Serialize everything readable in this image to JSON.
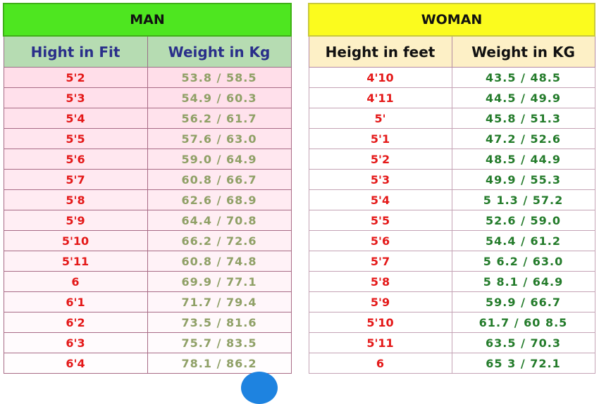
{
  "man": {
    "title": "MAN",
    "col_height": "Hight in Fit",
    "col_weight": "Weight in Kg",
    "rows": [
      {
        "height": "5'2",
        "weight": "53.8 / 58.5"
      },
      {
        "height": "5'3",
        "weight": "54.9 / 60.3"
      },
      {
        "height": "5'4",
        "weight": "56.2 / 61.7"
      },
      {
        "height": "5'5",
        "weight": "57.6 / 63.0"
      },
      {
        "height": "5'6",
        "weight": "59.0 / 64.9"
      },
      {
        "height": "5'7",
        "weight": "60.8 / 66.7"
      },
      {
        "height": "5'8",
        "weight": "62.6 / 68.9"
      },
      {
        "height": "5'9",
        "weight": "64.4 / 70.8"
      },
      {
        "height": "5'10",
        "weight": "66.2 / 72.6"
      },
      {
        "height": "5'11",
        "weight": "60.8 / 74.8"
      },
      {
        "height": "6",
        "weight": "69.9 / 77.1"
      },
      {
        "height": "6'1",
        "weight": "71.7 / 79.4"
      },
      {
        "height": "6'2",
        "weight": "73.5 / 81.6"
      },
      {
        "height": "6'3",
        "weight": "75.7 / 83.5"
      },
      {
        "height": "6'4",
        "weight": "78.1 / 86.2"
      }
    ]
  },
  "woman": {
    "title": "WOMAN",
    "col_height": "Height in feet",
    "col_weight": "Weight in KG",
    "rows": [
      {
        "height": "4'10",
        "weight": "43.5 / 48.5"
      },
      {
        "height": "4'11",
        "weight": "44.5 / 49.9"
      },
      {
        "height": "5'",
        "weight": "45.8 / 51.3"
      },
      {
        "height": "5'1",
        "weight": "47.2 / 52.6"
      },
      {
        "height": "5'2",
        "weight": "48.5 / 44.9"
      },
      {
        "height": "5'3",
        "weight": "49.9 / 55.3"
      },
      {
        "height": "5'4",
        "weight": "5 1.3 / 57.2"
      },
      {
        "height": "5'5",
        "weight": "52.6 / 59.0"
      },
      {
        "height": "5'6",
        "weight": "54.4 / 61.2"
      },
      {
        "height": "5'7",
        "weight": "5 6.2 / 63.0"
      },
      {
        "height": "5'8",
        "weight": "5 8.1 / 64.9"
      },
      {
        "height": "5'9",
        "weight": "59.9 / 66.7"
      },
      {
        "height": "5'10",
        "weight": "61.7 / 60 8.5"
      },
      {
        "height": "5'11",
        "weight": "63.5 / 70.3"
      },
      {
        "height": "6",
        "weight": "65 3 / 72.1"
      }
    ]
  },
  "colors": {
    "man_title_bg": "#4ee620",
    "woman_title_bg": "#fbfb1e",
    "height_text": "#e41818",
    "man_weight_text": "#8fa066",
    "woman_weight_text": "#237b2a"
  }
}
